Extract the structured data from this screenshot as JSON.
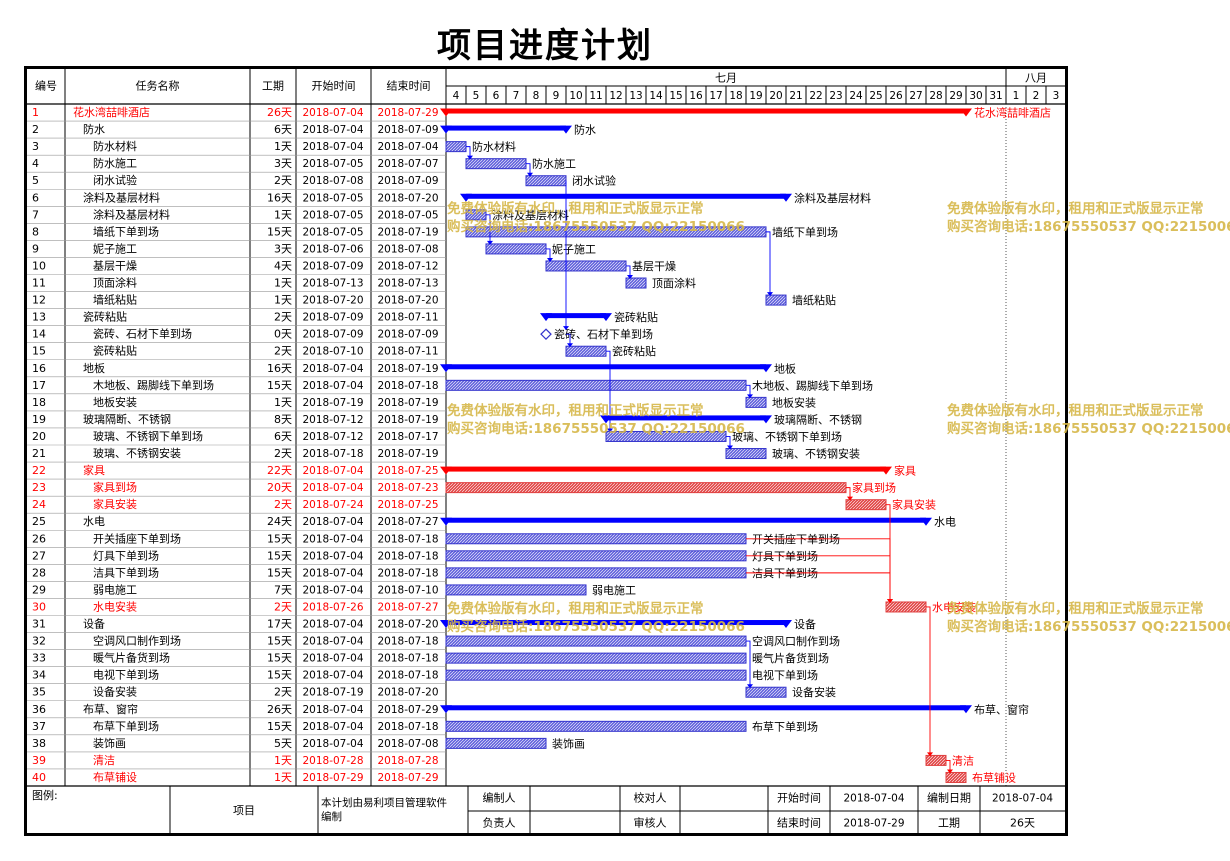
{
  "title": "项目进度计划",
  "headers": {
    "id": "编号",
    "name": "任务名称",
    "dur": "工期",
    "start": "开始时间",
    "end": "结束时间"
  },
  "months": [
    {
      "label": "七月",
      "first_day": 4,
      "last_day": 31
    },
    {
      "label": "八月",
      "first_day": 1,
      "last_day": 3
    }
  ],
  "timeline_start": "2018-07-04",
  "colors": {
    "summary": "#0000ff",
    "task": "#3333cc",
    "critical": "#ff0000",
    "critical_task": "#e04040",
    "watermark": "#d6b84a"
  },
  "chart_data": {
    "type": "gantt",
    "tasks": [
      {
        "id": "1",
        "name": "花水湾喆啡酒店",
        "dur": "26天",
        "start": "2018-07-04",
        "end": "2018-07-29",
        "level": 0,
        "kind": "summary",
        "critical": true
      },
      {
        "id": "2",
        "name": "防水",
        "dur": "6天",
        "start": "2018-07-04",
        "end": "2018-07-09",
        "level": 1,
        "kind": "summary",
        "critical": false
      },
      {
        "id": "3",
        "name": "防水材料",
        "dur": "1天",
        "start": "2018-07-04",
        "end": "2018-07-04",
        "level": 2,
        "kind": "task",
        "critical": false
      },
      {
        "id": "4",
        "name": "防水施工",
        "dur": "3天",
        "start": "2018-07-05",
        "end": "2018-07-07",
        "level": 2,
        "kind": "task",
        "critical": false
      },
      {
        "id": "5",
        "name": "闭水试验",
        "dur": "2天",
        "start": "2018-07-08",
        "end": "2018-07-09",
        "level": 2,
        "kind": "task",
        "critical": false
      },
      {
        "id": "6",
        "name": "涂料及基层材料",
        "dur": "16天",
        "start": "2018-07-05",
        "end": "2018-07-20",
        "level": 1,
        "kind": "summary",
        "critical": false
      },
      {
        "id": "7",
        "name": "涂料及基层材料",
        "dur": "1天",
        "start": "2018-07-05",
        "end": "2018-07-05",
        "level": 2,
        "kind": "task",
        "critical": false
      },
      {
        "id": "8",
        "name": "墙纸下单到场",
        "dur": "15天",
        "start": "2018-07-05",
        "end": "2018-07-19",
        "level": 2,
        "kind": "task",
        "critical": false
      },
      {
        "id": "9",
        "name": "妮子施工",
        "dur": "3天",
        "start": "2018-07-06",
        "end": "2018-07-08",
        "level": 2,
        "kind": "task",
        "critical": false
      },
      {
        "id": "10",
        "name": "基层干燥",
        "dur": "4天",
        "start": "2018-07-09",
        "end": "2018-07-12",
        "level": 2,
        "kind": "task",
        "critical": false
      },
      {
        "id": "11",
        "name": "顶面涂料",
        "dur": "1天",
        "start": "2018-07-13",
        "end": "2018-07-13",
        "level": 2,
        "kind": "task",
        "critical": false
      },
      {
        "id": "12",
        "name": "墙纸粘贴",
        "dur": "1天",
        "start": "2018-07-20",
        "end": "2018-07-20",
        "level": 2,
        "kind": "task",
        "critical": false
      },
      {
        "id": "13",
        "name": "瓷砖粘贴",
        "dur": "2天",
        "start": "2018-07-09",
        "end": "2018-07-11",
        "level": 1,
        "kind": "summary",
        "critical": false
      },
      {
        "id": "14",
        "name": "瓷砖、石材下单到场",
        "dur": "0天",
        "start": "2018-07-09",
        "end": "2018-07-09",
        "level": 2,
        "kind": "milestone",
        "critical": false
      },
      {
        "id": "15",
        "name": "瓷砖粘贴",
        "dur": "2天",
        "start": "2018-07-10",
        "end": "2018-07-11",
        "level": 2,
        "kind": "task",
        "critical": false
      },
      {
        "id": "16",
        "name": "地板",
        "dur": "16天",
        "start": "2018-07-04",
        "end": "2018-07-19",
        "level": 1,
        "kind": "summary",
        "critical": false
      },
      {
        "id": "17",
        "name": "木地板、踢脚线下单到场",
        "dur": "15天",
        "start": "2018-07-04",
        "end": "2018-07-18",
        "level": 2,
        "kind": "task",
        "critical": false
      },
      {
        "id": "18",
        "name": "地板安装",
        "dur": "1天",
        "start": "2018-07-19",
        "end": "2018-07-19",
        "level": 2,
        "kind": "task",
        "critical": false
      },
      {
        "id": "19",
        "name": "玻璃隔断、不锈钢",
        "dur": "8天",
        "start": "2018-07-12",
        "end": "2018-07-19",
        "level": 1,
        "kind": "summary",
        "critical": false
      },
      {
        "id": "20",
        "name": "玻璃、不锈钢下单到场",
        "dur": "6天",
        "start": "2018-07-12",
        "end": "2018-07-17",
        "level": 2,
        "kind": "task",
        "critical": false
      },
      {
        "id": "21",
        "name": "玻璃、不锈钢安装",
        "dur": "2天",
        "start": "2018-07-18",
        "end": "2018-07-19",
        "level": 2,
        "kind": "task",
        "critical": false
      },
      {
        "id": "22",
        "name": "家具",
        "dur": "22天",
        "start": "2018-07-04",
        "end": "2018-07-25",
        "level": 1,
        "kind": "summary",
        "critical": true
      },
      {
        "id": "23",
        "name": "家具到场",
        "dur": "20天",
        "start": "2018-07-04",
        "end": "2018-07-23",
        "level": 2,
        "kind": "task",
        "critical": true
      },
      {
        "id": "24",
        "name": "家具安装",
        "dur": "2天",
        "start": "2018-07-24",
        "end": "2018-07-25",
        "level": 2,
        "kind": "task",
        "critical": true
      },
      {
        "id": "25",
        "name": "水电",
        "dur": "24天",
        "start": "2018-07-04",
        "end": "2018-07-27",
        "level": 1,
        "kind": "summary",
        "critical": false
      },
      {
        "id": "26",
        "name": "开关插座下单到场",
        "dur": "15天",
        "start": "2018-07-04",
        "end": "2018-07-18",
        "level": 2,
        "kind": "task",
        "critical": false
      },
      {
        "id": "27",
        "name": "灯具下单到场",
        "dur": "15天",
        "start": "2018-07-04",
        "end": "2018-07-18",
        "level": 2,
        "kind": "task",
        "critical": false
      },
      {
        "id": "28",
        "name": "洁具下单到场",
        "dur": "15天",
        "start": "2018-07-04",
        "end": "2018-07-18",
        "level": 2,
        "kind": "task",
        "critical": false
      },
      {
        "id": "29",
        "name": "弱电施工",
        "dur": "7天",
        "start": "2018-07-04",
        "end": "2018-07-10",
        "level": 2,
        "kind": "task",
        "critical": false
      },
      {
        "id": "30",
        "name": "水电安装",
        "dur": "2天",
        "start": "2018-07-26",
        "end": "2018-07-27",
        "level": 2,
        "kind": "task",
        "critical": true
      },
      {
        "id": "31",
        "name": "设备",
        "dur": "17天",
        "start": "2018-07-04",
        "end": "2018-07-20",
        "level": 1,
        "kind": "summary",
        "critical": false
      },
      {
        "id": "32",
        "name": "空调风口制作到场",
        "dur": "15天",
        "start": "2018-07-04",
        "end": "2018-07-18",
        "level": 2,
        "kind": "task",
        "critical": false
      },
      {
        "id": "33",
        "name": "暖气片备货到场",
        "dur": "15天",
        "start": "2018-07-04",
        "end": "2018-07-18",
        "level": 2,
        "kind": "task",
        "critical": false
      },
      {
        "id": "34",
        "name": "电视下单到场",
        "dur": "15天",
        "start": "2018-07-04",
        "end": "2018-07-18",
        "level": 2,
        "kind": "task",
        "critical": false
      },
      {
        "id": "35",
        "name": "设备安装",
        "dur": "2天",
        "start": "2018-07-19",
        "end": "2018-07-20",
        "level": 2,
        "kind": "task",
        "critical": false
      },
      {
        "id": "36",
        "name": "布草、窗帘",
        "dur": "26天",
        "start": "2018-07-04",
        "end": "2018-07-29",
        "level": 1,
        "kind": "summary",
        "critical": false
      },
      {
        "id": "37",
        "name": "布草下单到场",
        "dur": "15天",
        "start": "2018-07-04",
        "end": "2018-07-18",
        "level": 2,
        "kind": "task",
        "critical": false
      },
      {
        "id": "38",
        "name": "装饰画",
        "dur": "5天",
        "start": "2018-07-04",
        "end": "2018-07-08",
        "level": 2,
        "kind": "task",
        "critical": false
      },
      {
        "id": "39",
        "name": "清洁",
        "dur": "1天",
        "start": "2018-07-28",
        "end": "2018-07-28",
        "level": 2,
        "kind": "task",
        "critical": true
      },
      {
        "id": "40",
        "name": "布草铺设",
        "dur": "1天",
        "start": "2018-07-29",
        "end": "2018-07-29",
        "level": 2,
        "kind": "task",
        "critical": true
      }
    ]
  },
  "watermarks": [
    {
      "line1": "免费体验版有水印，租用和正式版显示正常",
      "line2": "购买咨询电话:18675550537 QQ:22150066"
    }
  ],
  "footer": {
    "legend_label": "图例:",
    "project_label": "项目",
    "software_note": "本计划由易利项目管理软件编制",
    "editor_label": "编制人",
    "checker_label": "校对人",
    "owner_label": "负责人",
    "reviewer_label": "审核人",
    "start_label": "开始时间",
    "start_value": "2018-07-04",
    "end_label": "结束时间",
    "end_value": "2018-07-29",
    "made_label": "编制日期",
    "made_value": "2018-07-04",
    "duration_label": "工期",
    "duration_value": "26天"
  }
}
